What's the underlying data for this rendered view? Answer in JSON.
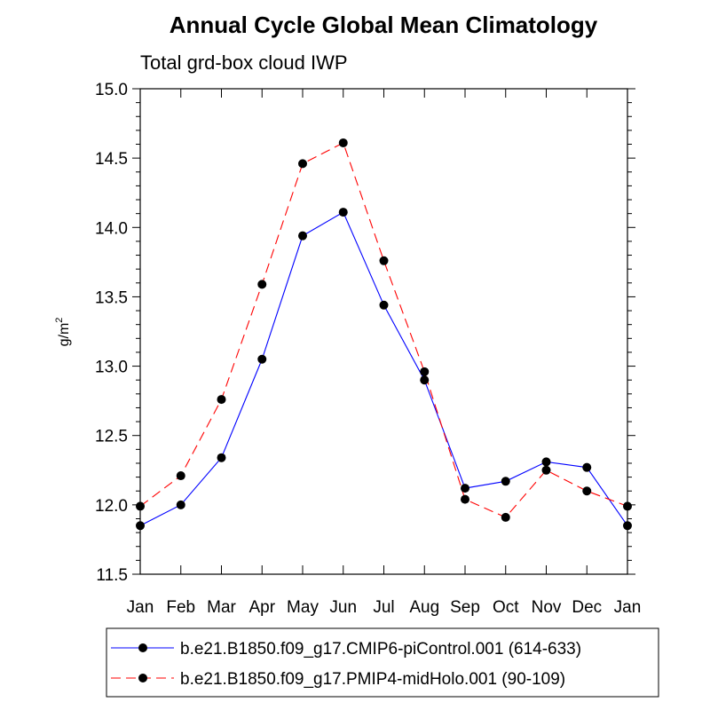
{
  "chart_data": {
    "type": "line",
    "title": "Annual Cycle Global Mean Climatology",
    "subtitle": "Total grd-box cloud IWP",
    "xlabel": "",
    "ylabel": "g/m",
    "ylabel_superscript": "2",
    "categories": [
      "Jan",
      "Feb",
      "Mar",
      "Apr",
      "May",
      "Jun",
      "Jul",
      "Aug",
      "Sep",
      "Oct",
      "Nov",
      "Dec",
      "Jan"
    ],
    "ylim": [
      11.5,
      15.0
    ],
    "yticks": [
      "11.5",
      "12.0",
      "12.5",
      "13.0",
      "13.5",
      "14.0",
      "14.5",
      "15.0"
    ],
    "grid": false,
    "legend_position": "bottom",
    "series": [
      {
        "name": "b.e21.B1850.f09_g17.CMIP6-piControl.001 (614-633)",
        "color": "#0000ff",
        "line_style": "solid",
        "marker": "filled-circle",
        "values": [
          11.85,
          12.0,
          12.34,
          13.05,
          13.94,
          14.11,
          13.44,
          12.9,
          12.12,
          12.17,
          12.31,
          12.27,
          11.85
        ]
      },
      {
        "name": "b.e21.B1850.f09_g17.PMIP4-midHolo.001 (90-109)",
        "color": "#ff0000",
        "line_style": "dashed",
        "marker": "filled-circle",
        "values": [
          11.99,
          12.21,
          12.76,
          13.59,
          14.46,
          14.61,
          13.76,
          12.96,
          12.04,
          11.91,
          12.25,
          12.1,
          11.99
        ]
      }
    ]
  }
}
